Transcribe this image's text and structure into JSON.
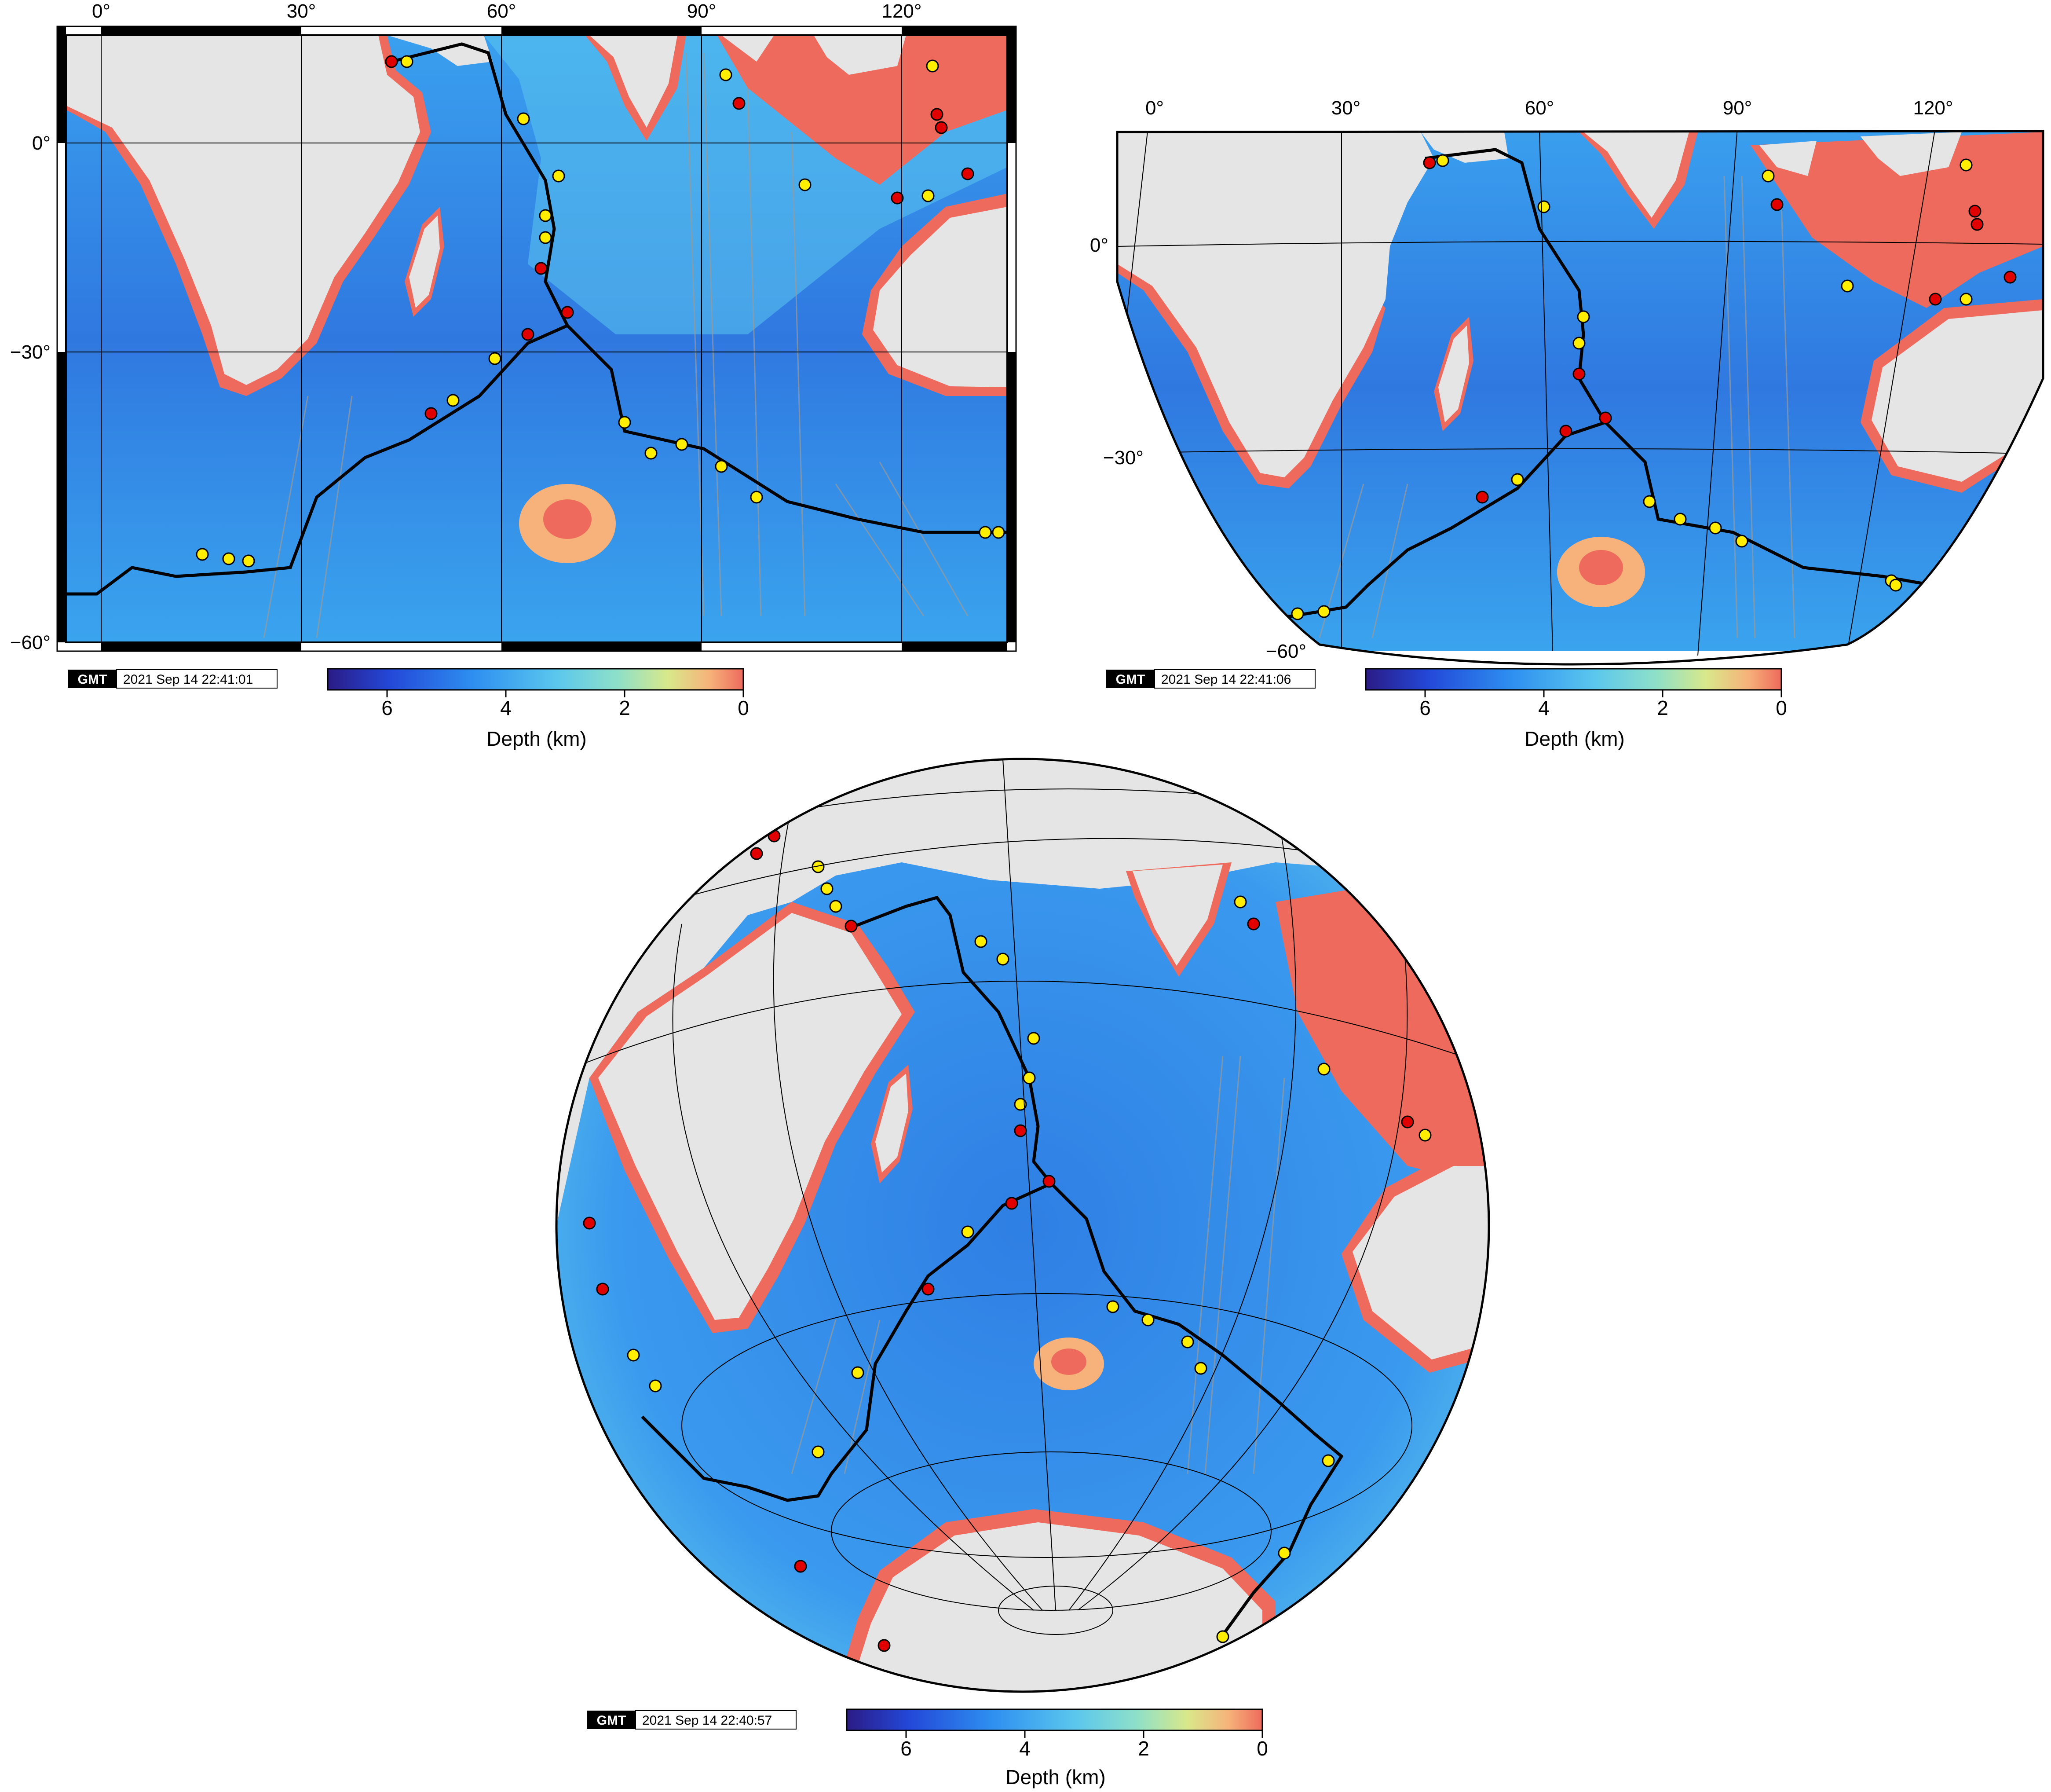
{
  "colors": {
    "land": "#e5e5e5",
    "ridge": "#000000",
    "grid": "#000000",
    "quake_shallow": "#ffee00",
    "quake_deep": "#e00000",
    "fracture": "#9a9a9a",
    "depth_ramp": [
      "#2b1b85",
      "#2348d8",
      "#2e8ff0",
      "#5bc7ee",
      "#8fe0c8",
      "#d9e88a",
      "#f6b27a",
      "#ee6a5c"
    ]
  },
  "maps": {
    "mercator": {
      "lon_labels": [
        "0°",
        "30°",
        "60°",
        "90°",
        "120°"
      ],
      "lat_labels": [
        "0°",
        "−30°",
        "−60°"
      ],
      "timestamp": "2021 Sep 14 22:41:01",
      "colorbar": {
        "ticks": [
          "6",
          "4",
          "2",
          "0"
        ],
        "label": "Depth (km)"
      }
    },
    "conic": {
      "lon_labels": [
        "0°",
        "30°",
        "60°",
        "90°",
        "120°"
      ],
      "lat_labels": [
        "0°",
        "−30°",
        "−60°"
      ],
      "timestamp": "2021 Sep 14 22:41:06",
      "colorbar": {
        "ticks": [
          "6",
          "4",
          "2",
          "0"
        ],
        "label": "Depth (km)"
      }
    },
    "globe": {
      "timestamp": "2021 Sep 14 22:40:57",
      "colorbar": {
        "ticks": [
          "6",
          "4",
          "2",
          "0"
        ],
        "label": "Depth (km)"
      }
    }
  },
  "logo": "GMT"
}
